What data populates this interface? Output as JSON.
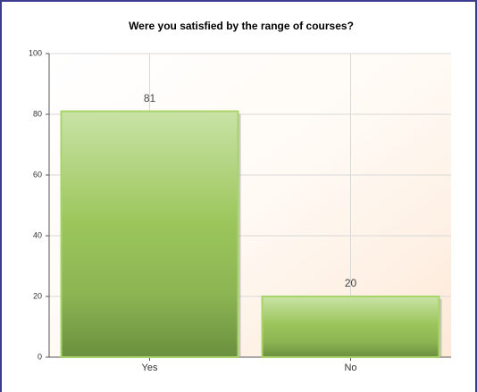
{
  "chart_data": {
    "type": "bar",
    "title": "Were you satisfied by the range of courses?",
    "categories": [
      "Yes",
      "No"
    ],
    "values": [
      81,
      20
    ],
    "color": "#9cc65c",
    "ylim": [
      0,
      100
    ],
    "yticks": [
      0,
      20,
      40,
      60,
      80,
      100
    ],
    "grid": true
  }
}
